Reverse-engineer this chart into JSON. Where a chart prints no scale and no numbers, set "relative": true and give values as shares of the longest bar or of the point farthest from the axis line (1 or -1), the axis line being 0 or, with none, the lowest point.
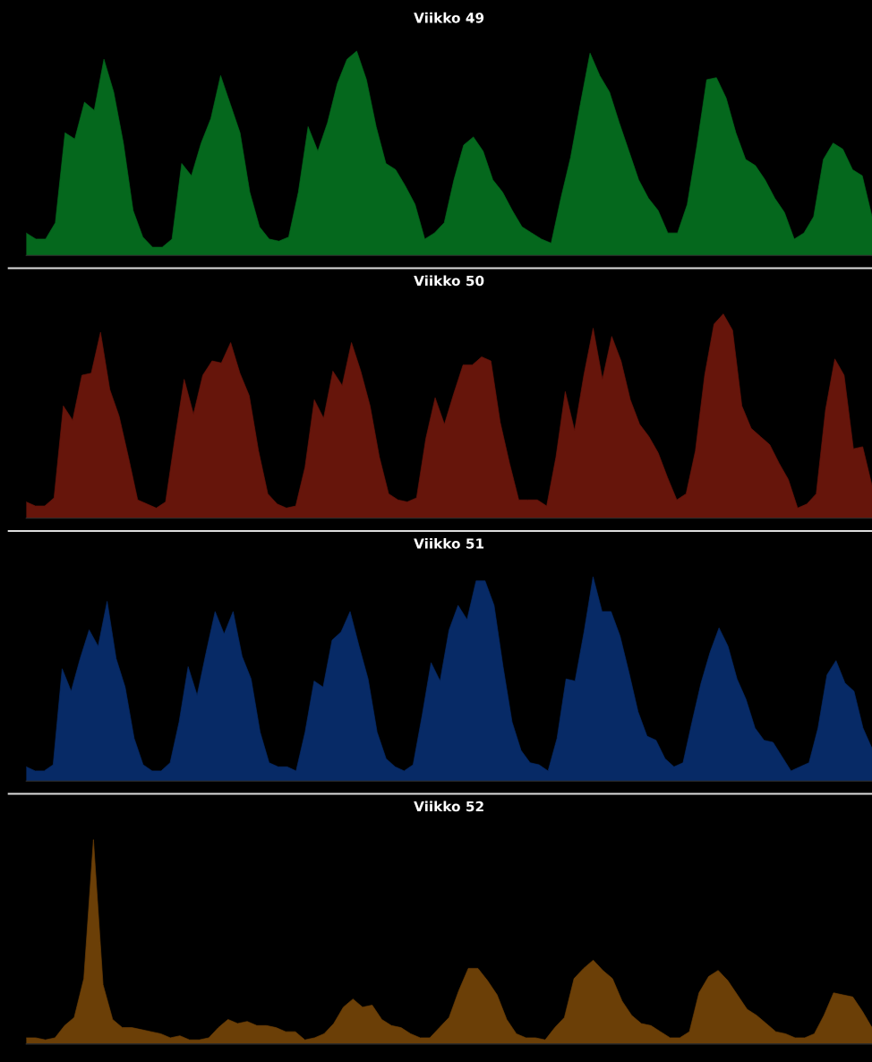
{
  "chart_data": [
    {
      "type": "area",
      "title": "Viikko 49",
      "relative": true,
      "categories": [
        null,
        null,
        null,
        null,
        null,
        null,
        null,
        null,
        null,
        null,
        null,
        null,
        null,
        null,
        null,
        null,
        null,
        null,
        null,
        null,
        null,
        null,
        null,
        null,
        null,
        null,
        null,
        null,
        null,
        null,
        null,
        null,
        null,
        null,
        null,
        null,
        null,
        null,
        null,
        null,
        null,
        null,
        null,
        null,
        null,
        null,
        null,
        null,
        null,
        null,
        null,
        null,
        null,
        null,
        null,
        null,
        null,
        null,
        null,
        null,
        null,
        null,
        null,
        null,
        null,
        null,
        null,
        null,
        null,
        null,
        null,
        null,
        null,
        null,
        null,
        null,
        null,
        null,
        null,
        null,
        null,
        null,
        null,
        null,
        null,
        null,
        null,
        null
      ],
      "series": [
        {
          "color": "#05681d",
          "values": [
            0.11,
            0.08,
            0.08,
            0.16,
            0.6,
            0.57,
            0.75,
            0.71,
            0.96,
            0.8,
            0.55,
            0.22,
            0.09,
            0.04,
            0.04,
            0.08,
            0.45,
            0.39,
            0.55,
            0.67,
            0.88,
            0.74,
            0.6,
            0.31,
            0.14,
            0.08,
            0.07,
            0.09,
            0.31,
            0.63,
            0.51,
            0.65,
            0.84,
            0.96,
            1.0,
            0.86,
            0.63,
            0.45,
            0.42,
            0.34,
            0.25,
            0.08,
            0.11,
            0.16,
            0.37,
            0.54,
            0.58,
            0.51,
            0.37,
            0.31,
            0.22,
            0.14,
            0.11,
            0.08,
            0.06,
            0.28,
            0.48,
            0.74,
            0.99,
            0.88,
            0.8,
            0.65,
            0.51,
            0.37,
            0.28,
            0.22,
            0.11,
            0.11,
            0.25,
            0.54,
            0.86,
            0.87,
            0.77,
            0.6,
            0.47,
            0.44,
            0.37,
            0.28,
            0.21,
            0.08,
            0.11,
            0.19,
            0.47,
            0.55,
            0.52,
            0.42,
            0.39,
            0.19
          ]
        }
      ]
    },
    {
      "type": "area",
      "title": "Viikko 50",
      "relative": true,
      "categories": [
        null,
        null,
        null,
        null,
        null,
        null,
        null,
        null,
        null,
        null,
        null,
        null,
        null,
        null,
        null,
        null,
        null,
        null,
        null,
        null,
        null,
        null,
        null,
        null,
        null,
        null,
        null,
        null,
        null,
        null,
        null,
        null,
        null,
        null,
        null,
        null,
        null,
        null,
        null,
        null,
        null,
        null,
        null,
        null,
        null,
        null,
        null,
        null,
        null,
        null,
        null,
        null,
        null,
        null,
        null,
        null,
        null,
        null,
        null,
        null,
        null,
        null,
        null,
        null,
        null,
        null,
        null,
        null,
        null,
        null,
        null,
        null,
        null,
        null,
        null,
        null,
        null,
        null,
        null,
        null,
        null,
        null,
        null,
        null,
        null,
        null,
        null,
        null,
        null,
        null,
        null,
        null
      ],
      "series": [
        {
          "color": "#66150b",
          "values": [
            0.08,
            0.06,
            0.06,
            0.1,
            0.55,
            0.48,
            0.7,
            0.71,
            0.91,
            0.63,
            0.5,
            0.3,
            0.09,
            0.07,
            0.05,
            0.08,
            0.39,
            0.68,
            0.51,
            0.7,
            0.77,
            0.76,
            0.86,
            0.71,
            0.6,
            0.33,
            0.12,
            0.07,
            0.05,
            0.06,
            0.25,
            0.58,
            0.49,
            0.72,
            0.65,
            0.86,
            0.72,
            0.55,
            0.3,
            0.12,
            0.09,
            0.08,
            0.1,
            0.39,
            0.59,
            0.46,
            0.61,
            0.75,
            0.75,
            0.79,
            0.77,
            0.47,
            0.27,
            0.09,
            0.09,
            0.09,
            0.06,
            0.3,
            0.62,
            0.43,
            0.7,
            0.93,
            0.68,
            0.89,
            0.77,
            0.58,
            0.46,
            0.4,
            0.32,
            0.2,
            0.09,
            0.12,
            0.33,
            0.7,
            0.95,
            1.0,
            0.92,
            0.55,
            0.44,
            0.4,
            0.36,
            0.27,
            0.19,
            0.05,
            0.07,
            0.12,
            0.53,
            0.78,
            0.7,
            0.34,
            0.35,
            0.16
          ]
        }
      ]
    },
    {
      "type": "area",
      "title": "Viikko 51",
      "relative": true,
      "categories": [
        null,
        null,
        null,
        null,
        null,
        null,
        null,
        null,
        null,
        null,
        null,
        null,
        null,
        null,
        null,
        null,
        null,
        null,
        null,
        null,
        null,
        null,
        null,
        null,
        null,
        null,
        null,
        null,
        null,
        null,
        null,
        null,
        null,
        null,
        null,
        null,
        null,
        null,
        null,
        null,
        null,
        null,
        null,
        null,
        null,
        null,
        null,
        null,
        null,
        null,
        null,
        null,
        null,
        null,
        null,
        null,
        null,
        null,
        null,
        null,
        null,
        null,
        null,
        null,
        null,
        null,
        null,
        null,
        null,
        null,
        null,
        null,
        null,
        null,
        null,
        null,
        null,
        null,
        null,
        null,
        null,
        null,
        null,
        null,
        null,
        null,
        null,
        null,
        null,
        null,
        null,
        null,
        null,
        null,
        null
      ],
      "series": [
        {
          "color": "#072a66",
          "values": [
            0.07,
            0.05,
            0.05,
            0.08,
            0.55,
            0.44,
            0.6,
            0.74,
            0.66,
            0.88,
            0.6,
            0.46,
            0.21,
            0.08,
            0.05,
            0.05,
            0.09,
            0.29,
            0.56,
            0.42,
            0.63,
            0.83,
            0.72,
            0.83,
            0.61,
            0.5,
            0.24,
            0.09,
            0.07,
            0.07,
            0.05,
            0.24,
            0.49,
            0.46,
            0.69,
            0.73,
            0.83,
            0.66,
            0.5,
            0.24,
            0.11,
            0.07,
            0.05,
            0.08,
            0.32,
            0.58,
            0.49,
            0.74,
            0.86,
            0.79,
            0.98,
            0.98,
            0.86,
            0.56,
            0.29,
            0.15,
            0.09,
            0.08,
            0.05,
            0.21,
            0.5,
            0.49,
            0.73,
            1.0,
            0.83,
            0.83,
            0.71,
            0.53,
            0.34,
            0.22,
            0.2,
            0.11,
            0.07,
            0.09,
            0.29,
            0.48,
            0.63,
            0.75,
            0.66,
            0.5,
            0.4,
            0.26,
            0.2,
            0.19,
            0.12,
            0.05,
            0.07,
            0.09,
            0.26,
            0.52,
            0.59,
            0.48,
            0.44,
            0.26,
            0.16
          ]
        }
      ]
    },
    {
      "type": "area",
      "title": "Viikko 52",
      "relative": true,
      "categories": [
        null,
        null,
        null,
        null,
        null,
        null,
        null,
        null,
        null,
        null,
        null,
        null,
        null,
        null,
        null,
        null,
        null,
        null,
        null,
        null,
        null,
        null,
        null,
        null,
        null,
        null,
        null,
        null,
        null,
        null,
        null,
        null,
        null,
        null,
        null,
        null,
        null,
        null,
        null,
        null,
        null,
        null,
        null,
        null,
        null,
        null,
        null,
        null,
        null,
        null,
        null,
        null,
        null,
        null,
        null,
        null,
        null,
        null,
        null,
        null,
        null,
        null,
        null,
        null,
        null,
        null,
        null,
        null,
        null,
        null,
        null,
        null,
        null,
        null,
        null,
        null,
        null,
        null,
        null,
        null,
        null,
        null,
        null,
        null,
        null,
        null,
        null,
        null,
        null
      ],
      "series": [
        {
          "color": "#6b3f07",
          "values": [
            0.03,
            0.03,
            0.02,
            0.03,
            0.09,
            0.13,
            0.32,
            1.0,
            0.29,
            0.12,
            0.08,
            0.08,
            0.07,
            0.06,
            0.05,
            0.03,
            0.04,
            0.02,
            0.02,
            0.03,
            0.08,
            0.12,
            0.1,
            0.11,
            0.09,
            0.09,
            0.08,
            0.06,
            0.06,
            0.02,
            0.03,
            0.05,
            0.1,
            0.18,
            0.22,
            0.18,
            0.19,
            0.12,
            0.09,
            0.08,
            0.05,
            0.03,
            0.03,
            0.08,
            0.13,
            0.26,
            0.37,
            0.37,
            0.31,
            0.24,
            0.12,
            0.05,
            0.03,
            0.03,
            0.02,
            0.08,
            0.13,
            0.32,
            0.37,
            0.41,
            0.36,
            0.32,
            0.21,
            0.14,
            0.1,
            0.09,
            0.06,
            0.03,
            0.03,
            0.06,
            0.25,
            0.33,
            0.36,
            0.31,
            0.24,
            0.17,
            0.14,
            0.1,
            0.06,
            0.05,
            0.03,
            0.03,
            0.05,
            0.14,
            0.25,
            0.24,
            0.23,
            0.16,
            0.08
          ]
        }
      ]
    }
  ]
}
